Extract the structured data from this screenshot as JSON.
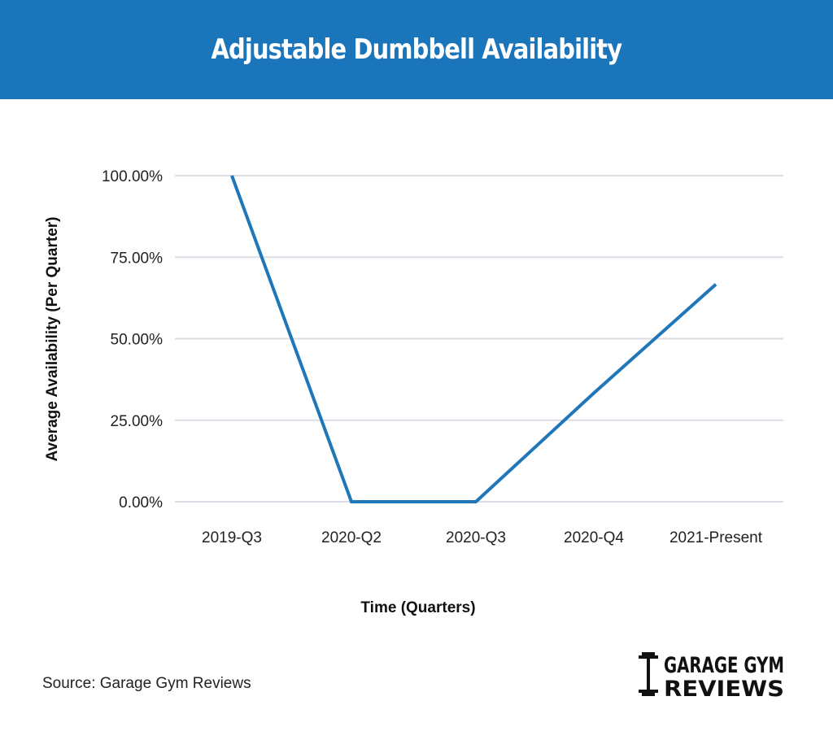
{
  "header": {
    "title": "Adjustable Dumbbell Availability"
  },
  "source": "Source: Garage Gym Reviews",
  "logo": {
    "line1": "GARAGE GYM",
    "line2": "REVIEWS"
  },
  "colors": {
    "header": "#1a75ba",
    "line": "#1f77b9",
    "grid": "#dcdce4"
  },
  "chart_data": {
    "type": "line",
    "title": "Adjustable Dumbbell Availability",
    "xlabel": "Time (Quarters)",
    "ylabel": "Average Availability (Per Quarter)",
    "categories": [
      "2019-Q3",
      "2020-Q2",
      "2020-Q3",
      "2020-Q4",
      "2021-Present"
    ],
    "values": [
      100,
      0,
      0,
      33.33,
      66.67
    ],
    "yticks": [
      "0.00%",
      "25.00%",
      "50.00%",
      "75.00%",
      "100.00%"
    ],
    "ylim": [
      0,
      100
    ],
    "grid": true,
    "legend": "none"
  }
}
